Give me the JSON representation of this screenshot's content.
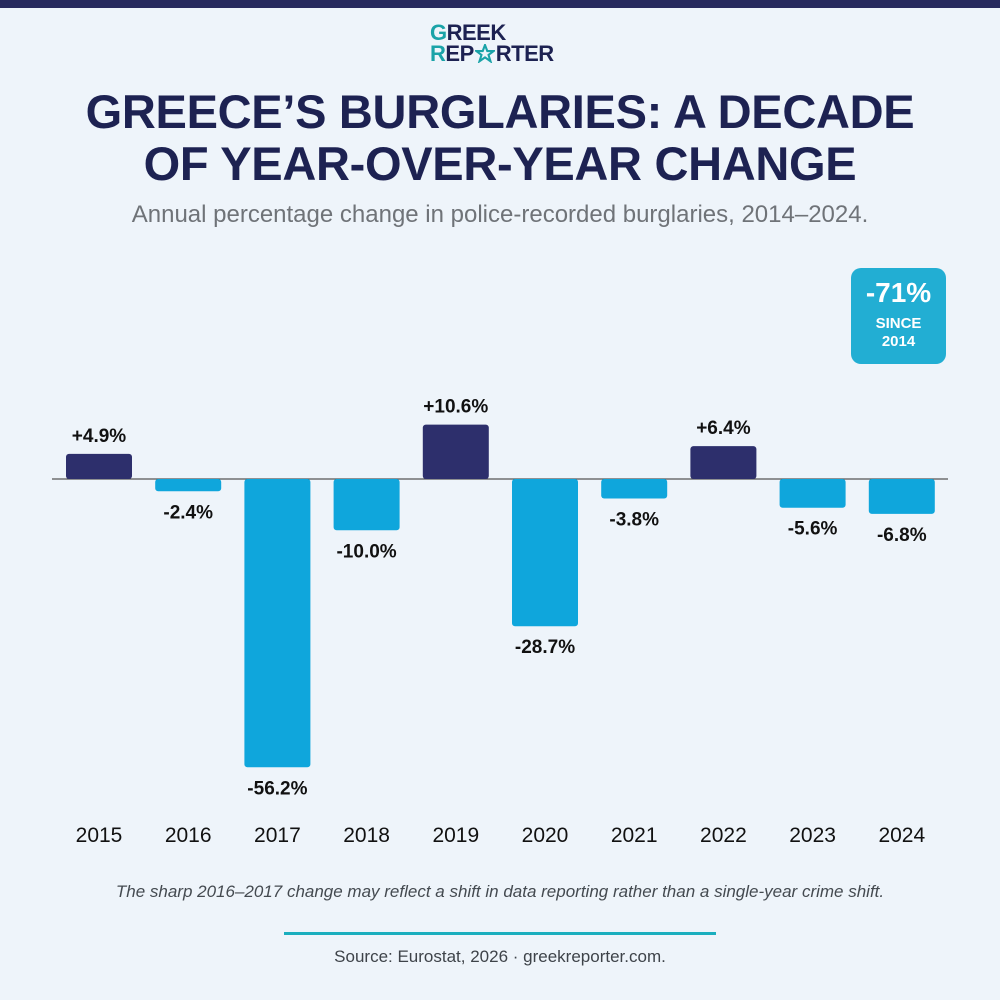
{
  "brand": {
    "logo_line1_a": "G",
    "logo_line1_b": "REEK",
    "logo_line2_a": "R",
    "logo_line2_b": "EP",
    "logo_line2_c": "RTER"
  },
  "header": {
    "title_line1": "GREECE’S BURGLARIES: A DECADE",
    "title_line2": "OF YEAR-OVER-YEAR CHANGE",
    "subtitle": "Annual percentage change in police-recorded burglaries, 2014–2024."
  },
  "badge": {
    "value": "-71%",
    "line1": "SINCE",
    "line2": "2014"
  },
  "chart_data": {
    "type": "bar",
    "categories": [
      "2015",
      "2016",
      "2017",
      "2018",
      "2019",
      "2020",
      "2021",
      "2022",
      "2023",
      "2024"
    ],
    "values": [
      4.9,
      -2.4,
      -56.2,
      -10.0,
      10.6,
      -28.7,
      -3.8,
      6.4,
      -5.6,
      -6.8
    ],
    "data_labels": [
      "+4.9%",
      "-2.4%",
      "-56.2%",
      "-10.0%",
      "+10.6%",
      "-28.7%",
      "-3.8%",
      "+6.4%",
      "-5.6%",
      "-6.8%"
    ],
    "title": "GREECE’S BURGLARIES: A DECADE OF YEAR-OVER-YEAR CHANGE",
    "xlabel": "",
    "ylabel": "",
    "ylim": [
      -60,
      15
    ],
    "grid": false,
    "legend": "none",
    "colors": {
      "positive": "#2d2f6c",
      "negative": "#0fa6dc",
      "baseline": "#555555"
    }
  },
  "footer": {
    "note": "The sharp 2016–2017 change may reflect a shift in data reporting rather than a single-year crime shift.",
    "source": "Source: Eurostat, 2026 · greekreporter.com."
  },
  "colors": {
    "navy": "#1d2252",
    "teal": "#1aa3a8",
    "badge": "#22aed3",
    "divider": "#1aaebe",
    "background": "#eef4fa",
    "top_bar": "#272a5e"
  }
}
